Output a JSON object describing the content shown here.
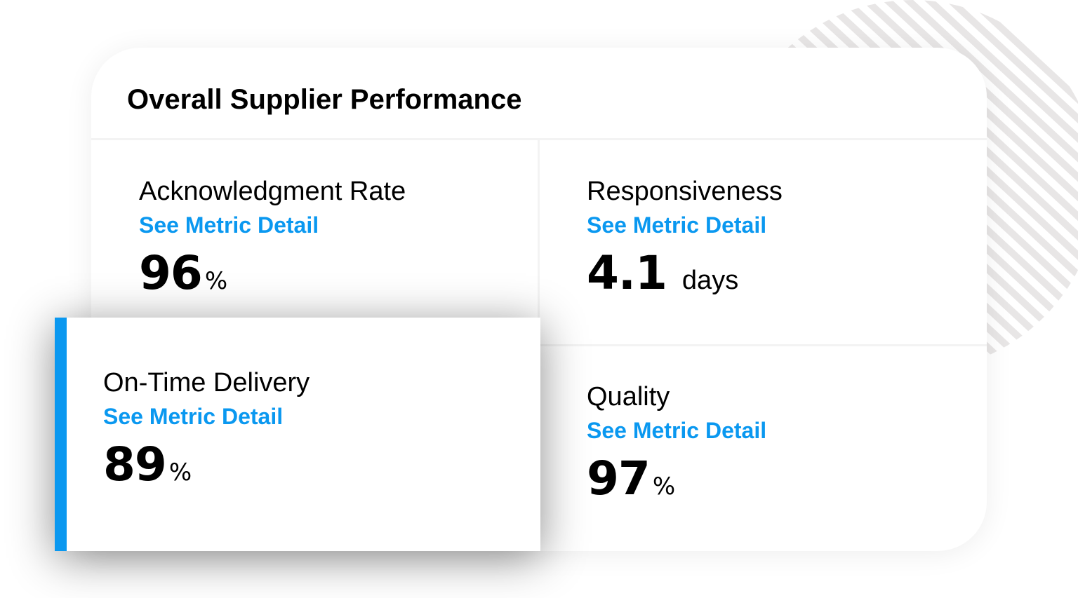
{
  "title": "Overall Supplier Performance",
  "accent_color": "#0a98f0",
  "metrics": [
    {
      "label": "Acknowledgment Rate",
      "link": "See Metric Detail",
      "value": "96",
      "unit": "%"
    },
    {
      "label": "Responsiveness",
      "link": "See Metric Detail",
      "value": "4.1",
      "unit": "days"
    },
    {
      "label": "On-Time Delivery",
      "link": "See Metric Detail",
      "value": "89",
      "unit": "%",
      "selected": true
    },
    {
      "label": "Quality",
      "link": "See Metric Detail",
      "value": "97",
      "unit": "%"
    }
  ]
}
